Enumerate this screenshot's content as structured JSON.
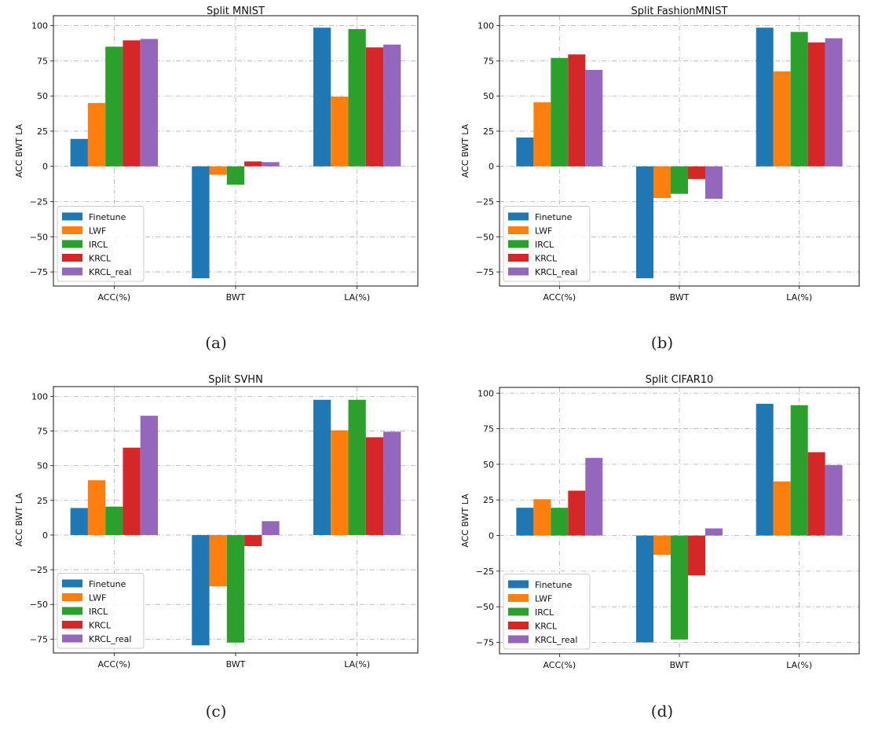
{
  "chart_data": [
    {
      "type": "bar",
      "panel_label": "(a)",
      "title": "Split MNIST",
      "xlabel": "",
      "ylabel": "ACC  BWT  LA",
      "categories": [
        "ACC(%)",
        "BWT",
        "LA(%)"
      ],
      "yticks": [
        "100",
        "75",
        "50",
        "25",
        "0",
        "−25",
        "−50",
        "−75"
      ],
      "ylim": [
        -85,
        107
      ],
      "grid": true,
      "legend_position": "lower-left",
      "series": [
        {
          "name": "Finetune",
          "color": "#1f77b4",
          "values": [
            19.5,
            -79.5,
            98.5
          ]
        },
        {
          "name": "LWF",
          "color": "#ff7f0e",
          "values": [
            45,
            -6,
            49.5
          ]
        },
        {
          "name": "IRCL",
          "color": "#2ca02c",
          "values": [
            85,
            -13,
            97.5
          ]
        },
        {
          "name": "KRCL",
          "color": "#d62728",
          "values": [
            89.5,
            3.5,
            84.5
          ]
        },
        {
          "name": "KRCL_real",
          "color": "#9467bd",
          "values": [
            90.5,
            3,
            86.5
          ]
        }
      ]
    },
    {
      "type": "bar",
      "panel_label": "(b)",
      "title": "Split FashionMNIST",
      "xlabel": "",
      "ylabel": "ACC  BWT  LA",
      "categories": [
        "ACC(%)",
        "BWT",
        "LA(%)"
      ],
      "yticks": [
        "100",
        "75",
        "50",
        "25",
        "0",
        "−25",
        "−50",
        "−75"
      ],
      "ylim": [
        -85,
        107
      ],
      "grid": true,
      "legend_position": "lower-left",
      "series": [
        {
          "name": "Finetune",
          "color": "#1f77b4",
          "values": [
            20.5,
            -79.5,
            98.5
          ]
        },
        {
          "name": "LWF",
          "color": "#ff7f0e",
          "values": [
            45.5,
            -22.5,
            67.5
          ]
        },
        {
          "name": "IRCL",
          "color": "#2ca02c",
          "values": [
            77,
            -19.5,
            95.5
          ]
        },
        {
          "name": "KRCL",
          "color": "#d62728",
          "values": [
            79.5,
            -9,
            88
          ]
        },
        {
          "name": "KRCL_real",
          "color": "#9467bd",
          "values": [
            68.5,
            -23,
            91
          ]
        }
      ]
    },
    {
      "type": "bar",
      "panel_label": "(c)",
      "title": "Split SVHN",
      "xlabel": "",
      "ylabel": "ACC  BWT  LA",
      "categories": [
        "ACC(%)",
        "BWT",
        "LA(%)"
      ],
      "yticks": [
        "100",
        "75",
        "50",
        "25",
        "0",
        "−25",
        "−50",
        "−75"
      ],
      "ylim": [
        -85,
        107
      ],
      "grid": true,
      "legend_position": "lower-left",
      "series": [
        {
          "name": "Finetune",
          "color": "#1f77b4",
          "values": [
            19.5,
            -79.5,
            97.5
          ]
        },
        {
          "name": "LWF",
          "color": "#ff7f0e",
          "values": [
            39.5,
            -37,
            75.5
          ]
        },
        {
          "name": "IRCL",
          "color": "#2ca02c",
          "values": [
            20.5,
            -77.5,
            97.5
          ]
        },
        {
          "name": "KRCL",
          "color": "#d62728",
          "values": [
            63,
            -8,
            70.5
          ]
        },
        {
          "name": "KRCL_real",
          "color": "#9467bd",
          "values": [
            86,
            10,
            74.5
          ]
        }
      ]
    },
    {
      "type": "bar",
      "panel_label": "(d)",
      "title": "Split CIFAR10",
      "xlabel": "",
      "ylabel": "ACC  BWT  LA",
      "categories": [
        "ACC(%)",
        "BWT",
        "LA(%)"
      ],
      "yticks": [
        "100",
        "75",
        "50",
        "25",
        "0",
        "−25",
        "−50",
        "−75"
      ],
      "ylim": [
        -83,
        104
      ],
      "grid": true,
      "legend_position": "lower-left",
      "series": [
        {
          "name": "Finetune",
          "color": "#1f77b4",
          "values": [
            19.5,
            -75,
            92.5
          ]
        },
        {
          "name": "LWF",
          "color": "#ff7f0e",
          "values": [
            25.5,
            -13.5,
            38
          ]
        },
        {
          "name": "IRCL",
          "color": "#2ca02c",
          "values": [
            19.5,
            -73,
            91.5
          ]
        },
        {
          "name": "KRCL",
          "color": "#d62728",
          "values": [
            31.5,
            -28,
            58.5
          ]
        },
        {
          "name": "KRCL_real",
          "color": "#9467bd",
          "values": [
            54.5,
            5,
            49.5
          ]
        }
      ]
    }
  ]
}
